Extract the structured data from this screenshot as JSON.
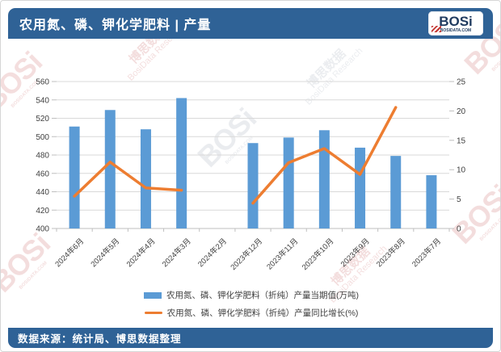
{
  "header": {
    "title": "农用氮、磷、钾化学肥料 | 产量",
    "logo": {
      "brand": "BOSi",
      "domain": "BOSIDATA.COM"
    }
  },
  "watermark": {
    "brand": "BOSi",
    "cn": "博思数据",
    "en": "BosiData Research",
    "domain": "BOSIDATA.COM"
  },
  "chart_data": {
    "type": "bar",
    "subtype": "combo-bar-line-dual-axis",
    "title": "农用氮、磷、钾化学肥料 | 产量",
    "categories": [
      "2024年6月",
      "2024年5月",
      "2024年4月",
      "2024年3月",
      "2024年2月",
      "2023年12月",
      "2023年11月",
      "2023年10月",
      "2023年9月",
      "2023年8月",
      "2023年7月"
    ],
    "series": [
      {
        "name": "农用氮、磷、钾化学肥料（折纯）产量当期值(万吨)",
        "type": "bar",
        "axis": "left",
        "color": "#5B9BD5",
        "values": [
          511,
          529,
          508,
          542,
          null,
          493,
          499,
          507,
          488,
          479,
          458
        ]
      },
      {
        "name": "农用氮、磷、钾化学肥料（折纯）产量同比增长(%)",
        "type": "line",
        "axis": "right",
        "color": "#ED7D31",
        "values": [
          5.5,
          11.3,
          6.9,
          6.5,
          null,
          4.3,
          11.2,
          13.6,
          9.2,
          20.6,
          null
        ]
      }
    ],
    "left_axis": {
      "min": 400,
      "max": 560,
      "step": 20
    },
    "right_axis": {
      "min": 0,
      "max": 25,
      "step": 5
    },
    "grid": true,
    "legend_position": "bottom"
  },
  "footer": {
    "source_label": "数据来源：统计局、博思数据整理"
  },
  "colors": {
    "header_bar": "#2F6296",
    "bar": "#5B9BD5",
    "line": "#ED7D31",
    "gridline": "#D9D9D9",
    "axis": "#BFBFBF",
    "axis_text": "#404040",
    "logo_navy": "#1F3A5F",
    "logo_red": "#C23531",
    "watermark_red": "#C24B4B",
    "watermark_gray": "#8E9AAB"
  }
}
